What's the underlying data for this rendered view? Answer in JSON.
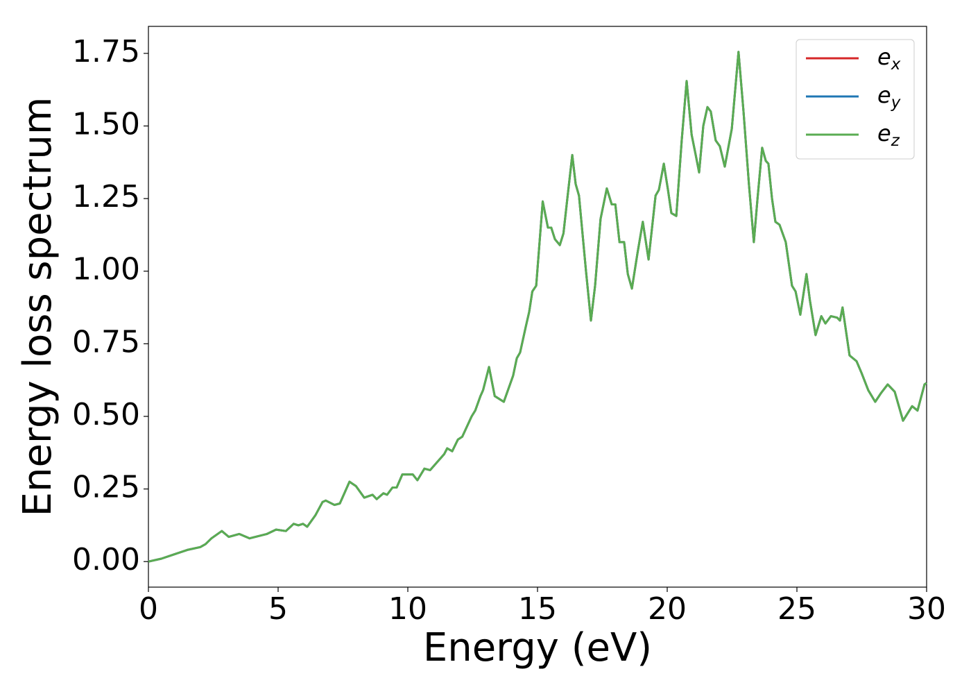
{
  "chart_data": {
    "type": "line",
    "xlabel": "Energy (eV)",
    "ylabel": "Energy loss spectrum",
    "xlim": [
      0,
      30
    ],
    "ylim": [
      -0.088,
      1.843
    ],
    "xticks": [
      0,
      5,
      10,
      15,
      20,
      25,
      30
    ],
    "yticks": [
      {
        "value": 0,
        "label": "0.00"
      },
      0.25,
      {
        "value": 0.5,
        "label": "0.50"
      },
      0.75,
      {
        "value": 1,
        "label": "1.00"
      },
      1.25,
      {
        "value": 1.5,
        "label": "1.50"
      },
      1.75
    ],
    "legend": "upper right",
    "x": [
      0,
      0.5,
      1,
      1.5,
      2,
      2.2,
      2.43,
      2.83,
      3.1,
      3.5,
      3.9,
      4.57,
      4.92,
      5.3,
      5.6,
      5.78,
      5.96,
      6.12,
      6.44,
      6.71,
      6.84,
      7.17,
      7.38,
      7.75,
      8.0,
      8.32,
      8.64,
      8.8,
      9.06,
      9.2,
      9.41,
      9.57,
      9.79,
      10.19,
      10.37,
      10.64,
      10.86,
      11.4,
      11.52,
      11.71,
      11.93,
      12.1,
      12.46,
      12.6,
      12.8,
      12.9,
      13.13,
      13.35,
      13.7,
      14.06,
      14.2,
      14.33,
      14.55,
      14.68,
      14.8,
      14.95,
      15.2,
      15.4,
      15.53,
      15.67,
      15.86,
      16.0,
      16.15,
      16.34,
      16.47,
      16.6,
      16.87,
      17.06,
      17.22,
      17.43,
      17.67,
      17.86,
      18.0,
      18.16,
      18.34,
      18.48,
      18.64,
      18.85,
      19.06,
      19.28,
      19.55,
      19.68,
      19.87,
      20.03,
      20.16,
      20.35,
      20.56,
      20.75,
      20.94,
      21.1,
      21.23,
      21.39,
      21.55,
      21.68,
      21.87,
      22.03,
      22.22,
      22.49,
      22.75,
      22.94,
      23.15,
      23.34,
      23.48,
      23.66,
      23.8,
      23.9,
      24.04,
      24.17,
      24.33,
      24.57,
      24.81,
      24.95,
      25.13,
      25.37,
      25.5,
      25.72,
      25.94,
      26.1,
      26.31,
      26.55,
      26.66,
      26.76,
      27.03,
      27.3,
      27.49,
      27.75,
      28.02,
      28.24,
      28.5,
      28.77,
      29.09,
      29.44,
      29.65,
      29.92,
      30
    ],
    "series": [
      {
        "name": "e_x",
        "color": "#d62728",
        "values": [
          0,
          0.01,
          0.025,
          0.04,
          0.05,
          0.06,
          0.08,
          0.105,
          0.085,
          0.095,
          0.08,
          0.095,
          0.11,
          0.105,
          0.13,
          0.125,
          0.13,
          0.12,
          0.16,
          0.205,
          0.21,
          0.195,
          0.2,
          0.275,
          0.26,
          0.22,
          0.23,
          0.215,
          0.235,
          0.23,
          0.255,
          0.255,
          0.3,
          0.3,
          0.28,
          0.32,
          0.315,
          0.37,
          0.39,
          0.38,
          0.42,
          0.43,
          0.5,
          0.52,
          0.57,
          0.59,
          0.67,
          0.57,
          0.55,
          0.64,
          0.7,
          0.72,
          0.81,
          0.86,
          0.93,
          0.95,
          1.24,
          1.15,
          1.15,
          1.11,
          1.09,
          1.13,
          1.25,
          1.4,
          1.3,
          1.26,
          1.0,
          0.83,
          0.95,
          1.18,
          1.285,
          1.23,
          1.23,
          1.1,
          1.1,
          0.99,
          0.94,
          1.06,
          1.17,
          1.04,
          1.26,
          1.28,
          1.37,
          1.28,
          1.2,
          1.19,
          1.45,
          1.655,
          1.47,
          1.4,
          1.34,
          1.5,
          1.565,
          1.55,
          1.45,
          1.43,
          1.36,
          1.49,
          1.755,
          1.55,
          1.3,
          1.1,
          1.25,
          1.425,
          1.38,
          1.37,
          1.25,
          1.17,
          1.16,
          1.1,
          0.95,
          0.93,
          0.85,
          0.99,
          0.9,
          0.78,
          0.845,
          0.82,
          0.845,
          0.84,
          0.83,
          0.875,
          0.71,
          0.69,
          0.65,
          0.59,
          0.55,
          0.58,
          0.61,
          0.585,
          0.485,
          0.535,
          0.52,
          0.61,
          0.615
        ]
      },
      {
        "name": "e_y",
        "color": "#1f77b4",
        "values": [
          0,
          0.01,
          0.025,
          0.04,
          0.05,
          0.06,
          0.08,
          0.105,
          0.085,
          0.095,
          0.08,
          0.095,
          0.11,
          0.105,
          0.13,
          0.125,
          0.13,
          0.12,
          0.16,
          0.205,
          0.21,
          0.195,
          0.2,
          0.275,
          0.26,
          0.22,
          0.23,
          0.215,
          0.235,
          0.23,
          0.255,
          0.255,
          0.3,
          0.3,
          0.28,
          0.32,
          0.315,
          0.37,
          0.39,
          0.38,
          0.42,
          0.43,
          0.5,
          0.52,
          0.57,
          0.59,
          0.67,
          0.57,
          0.55,
          0.64,
          0.7,
          0.72,
          0.81,
          0.86,
          0.93,
          0.95,
          1.24,
          1.15,
          1.15,
          1.11,
          1.09,
          1.13,
          1.25,
          1.4,
          1.3,
          1.26,
          1.0,
          0.83,
          0.95,
          1.18,
          1.285,
          1.23,
          1.23,
          1.1,
          1.1,
          0.99,
          0.94,
          1.06,
          1.17,
          1.04,
          1.26,
          1.28,
          1.37,
          1.28,
          1.2,
          1.19,
          1.45,
          1.655,
          1.47,
          1.4,
          1.34,
          1.5,
          1.565,
          1.55,
          1.45,
          1.43,
          1.36,
          1.49,
          1.755,
          1.55,
          1.3,
          1.1,
          1.25,
          1.425,
          1.38,
          1.37,
          1.25,
          1.17,
          1.16,
          1.1,
          0.95,
          0.93,
          0.85,
          0.99,
          0.9,
          0.78,
          0.845,
          0.82,
          0.845,
          0.84,
          0.83,
          0.875,
          0.71,
          0.69,
          0.65,
          0.59,
          0.55,
          0.58,
          0.61,
          0.585,
          0.485,
          0.535,
          0.52,
          0.61,
          0.615
        ]
      },
      {
        "name": "e_z",
        "color": "#5aac52",
        "values": [
          0,
          0.01,
          0.025,
          0.04,
          0.05,
          0.06,
          0.08,
          0.105,
          0.085,
          0.095,
          0.08,
          0.095,
          0.11,
          0.105,
          0.13,
          0.125,
          0.13,
          0.12,
          0.16,
          0.205,
          0.21,
          0.195,
          0.2,
          0.275,
          0.26,
          0.22,
          0.23,
          0.215,
          0.235,
          0.23,
          0.255,
          0.255,
          0.3,
          0.3,
          0.28,
          0.32,
          0.315,
          0.37,
          0.39,
          0.38,
          0.42,
          0.43,
          0.5,
          0.52,
          0.57,
          0.59,
          0.67,
          0.57,
          0.55,
          0.64,
          0.7,
          0.72,
          0.81,
          0.86,
          0.93,
          0.95,
          1.24,
          1.15,
          1.15,
          1.11,
          1.09,
          1.13,
          1.25,
          1.4,
          1.3,
          1.26,
          1.0,
          0.83,
          0.95,
          1.18,
          1.285,
          1.23,
          1.23,
          1.1,
          1.1,
          0.99,
          0.94,
          1.06,
          1.17,
          1.04,
          1.26,
          1.28,
          1.37,
          1.28,
          1.2,
          1.19,
          1.45,
          1.655,
          1.47,
          1.4,
          1.34,
          1.5,
          1.565,
          1.55,
          1.45,
          1.43,
          1.36,
          1.49,
          1.755,
          1.55,
          1.3,
          1.1,
          1.25,
          1.425,
          1.38,
          1.37,
          1.25,
          1.17,
          1.16,
          1.1,
          0.95,
          0.93,
          0.85,
          0.99,
          0.9,
          0.78,
          0.845,
          0.82,
          0.845,
          0.84,
          0.83,
          0.875,
          0.71,
          0.69,
          0.65,
          0.59,
          0.55,
          0.58,
          0.61,
          0.585,
          0.485,
          0.535,
          0.52,
          0.61,
          0.615
        ]
      }
    ]
  }
}
